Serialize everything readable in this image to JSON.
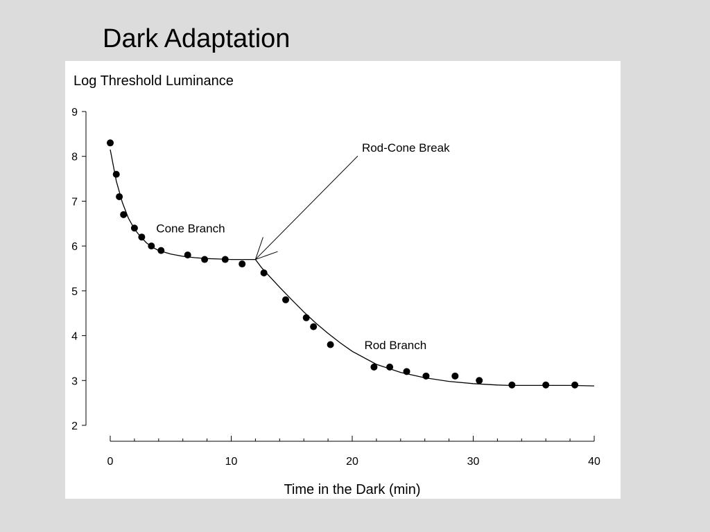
{
  "slide": {
    "title": "Dark Adaptation"
  },
  "chart_data": {
    "type": "scatter",
    "title": "",
    "ylabel": "Log Threshold Luminance",
    "xlabel": "Time in the Dark (min)",
    "xlim": [
      0,
      40
    ],
    "ylim": [
      2,
      9
    ],
    "xticks": [
      0,
      10,
      20,
      30,
      40
    ],
    "xticks_minor": [
      2,
      4,
      6,
      8,
      12,
      14,
      16,
      18,
      22,
      24,
      26,
      28,
      32,
      34,
      36,
      38
    ],
    "yticks": [
      2,
      3,
      4,
      5,
      6,
      7,
      8,
      9
    ],
    "grid": false,
    "legend": "none",
    "series": [
      {
        "marker": "filled-circle",
        "color": "#000000",
        "x": [
          0.0,
          0.5,
          0.75,
          1.1,
          2.0,
          2.6,
          3.4,
          4.2,
          6.4,
          7.8,
          9.5,
          10.9,
          12.7,
          14.5,
          16.2,
          16.8,
          18.2,
          21.8,
          23.1,
          24.5,
          26.1,
          28.5,
          30.5,
          33.2,
          36.0,
          38.4
        ],
        "y": [
          8.3,
          7.6,
          7.1,
          6.7,
          6.4,
          6.2,
          6.0,
          5.9,
          5.8,
          5.7,
          5.7,
          5.6,
          5.4,
          4.8,
          4.4,
          4.2,
          3.8,
          3.3,
          3.3,
          3.2,
          3.1,
          3.1,
          3.0,
          2.9,
          2.9,
          2.9
        ]
      }
    ],
    "fit_curve": {
      "color": "#000000",
      "x": [
        0.0,
        0.5,
        1.0,
        1.5,
        2.0,
        2.5,
        3.0,
        3.5,
        4.0,
        5.0,
        6.0,
        7.0,
        8.0,
        9.0,
        10.0,
        11.0,
        12.0,
        12.5,
        13.0,
        14.0,
        15.0,
        16.0,
        17.0,
        18.0,
        19.0,
        20.0,
        22.0,
        24.0,
        26.0,
        28.0,
        30.0,
        32.0,
        33.0,
        34.0,
        36.0,
        38.0,
        40.0
      ],
      "y": [
        8.15,
        7.45,
        6.97,
        6.62,
        6.38,
        6.21,
        6.07,
        5.97,
        5.9,
        5.82,
        5.77,
        5.74,
        5.72,
        5.71,
        5.7,
        5.7,
        5.7,
        5.52,
        5.37,
        5.08,
        4.8,
        4.53,
        4.28,
        4.05,
        3.84,
        3.65,
        3.36,
        3.18,
        3.06,
        2.98,
        2.93,
        2.9,
        2.89,
        2.89,
        2.89,
        2.89,
        2.88
      ]
    },
    "annotations": [
      {
        "text": "Cone Branch",
        "x": 3.8,
        "y": 6.3
      },
      {
        "text": "Rod Branch",
        "x": 21.0,
        "y": 3.7
      },
      {
        "text": "Rod-Cone Break",
        "x": 20.8,
        "y": 8.1,
        "arrow_to": {
          "x": 12.0,
          "y": 5.7
        }
      }
    ]
  }
}
